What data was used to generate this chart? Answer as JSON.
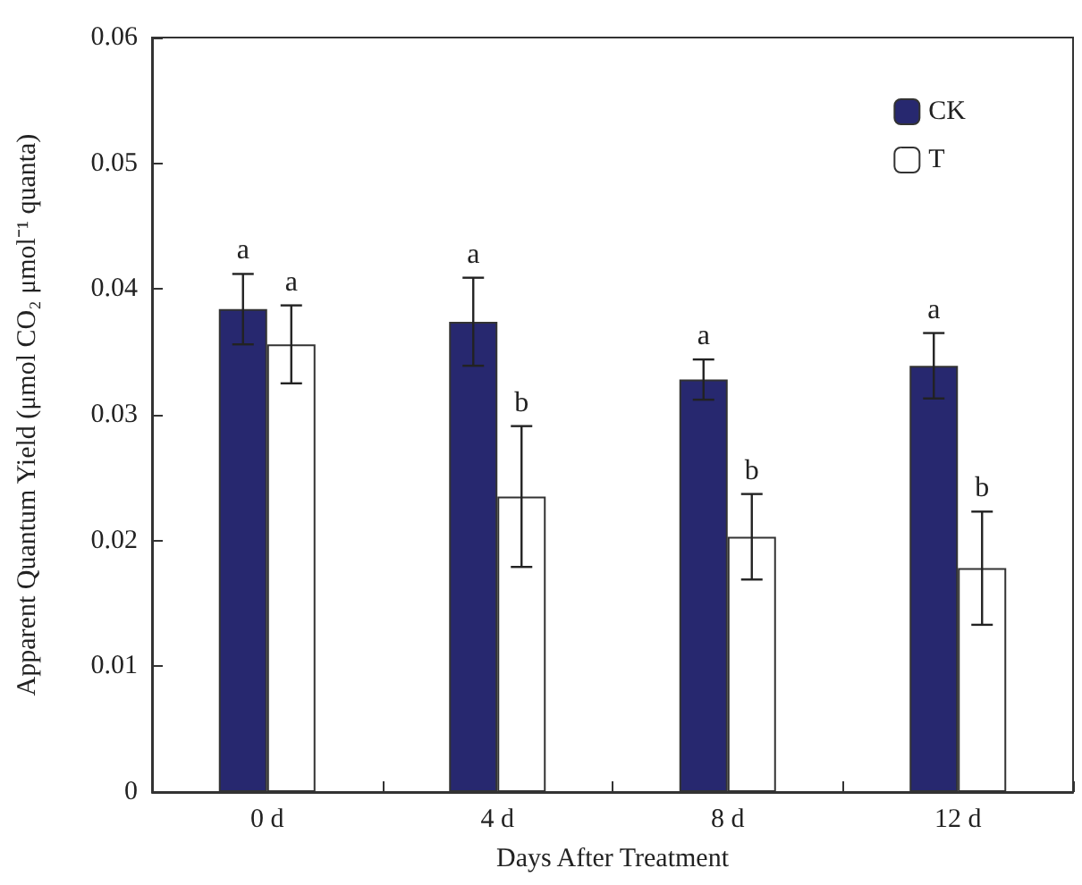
{
  "chart_data": {
    "type": "bar",
    "xlabel": "Days After Treatment",
    "ylabel": "Apparent Quantum Yield (μmol CO₂ μmol⁻¹ quanta)",
    "categories": [
      "0 d",
      "4 d",
      "8 d",
      "12 d"
    ],
    "series": [
      {
        "name": "CK",
        "color": "#27286f",
        "values": [
          0.0384,
          0.0374,
          0.0328,
          0.0339
        ],
        "errors": [
          0.0028,
          0.0035,
          0.0016,
          0.0026
        ]
      },
      {
        "name": "T",
        "color": "#ffffff",
        "values": [
          0.0356,
          0.0235,
          0.0203,
          0.0178
        ],
        "errors": [
          0.0031,
          0.0056,
          0.0034,
          0.0045
        ]
      }
    ],
    "ylim": [
      0,
      0.06
    ],
    "yticks": [
      0,
      0.01,
      0.02,
      0.03,
      0.04,
      0.05,
      0.06
    ],
    "grid": false,
    "legend": "top right",
    "annotations": [
      {
        "text": "a",
        "x": "0 d",
        "y": 0.0384
      },
      {
        "text": "a",
        "x": "0 d",
        "y": 0.0356
      },
      {
        "text": "a",
        "x": "4 d",
        "y": 0.0374
      },
      {
        "text": "b",
        "x": "4 d",
        "y": 0.0235
      },
      {
        "text": "a",
        "x": "8 d",
        "y": 0.0328
      },
      {
        "text": "b",
        "x": "8 d",
        "y": 0.0203
      },
      {
        "text": "a",
        "x": "12 d",
        "y": 0.0339
      },
      {
        "text": "b",
        "x": "12 d",
        "y": 0.0178
      }
    ]
  }
}
